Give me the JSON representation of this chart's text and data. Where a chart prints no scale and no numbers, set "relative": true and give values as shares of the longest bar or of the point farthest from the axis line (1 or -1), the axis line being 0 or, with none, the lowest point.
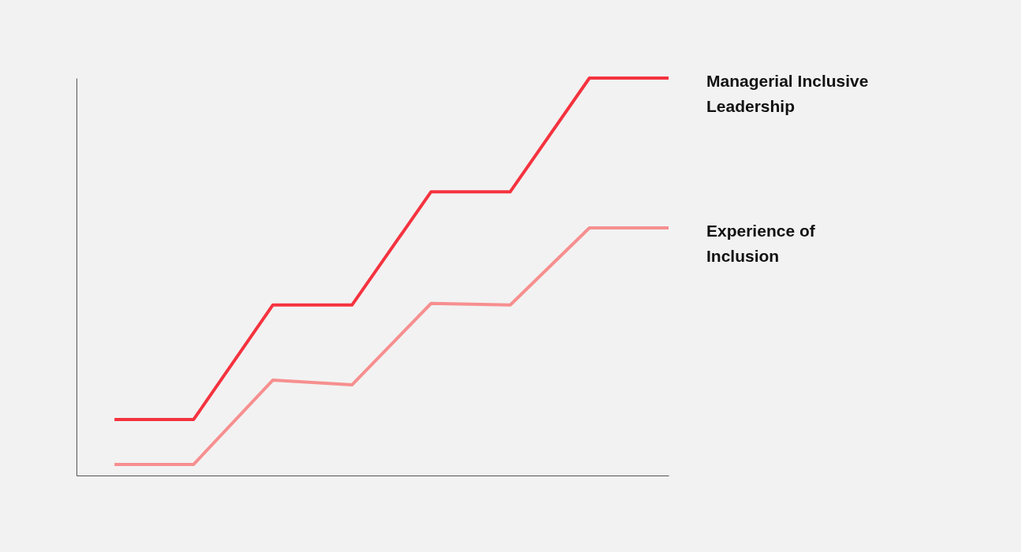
{
  "chart_data": {
    "type": "line",
    "relative": true,
    "grid": false,
    "legend": false,
    "marker": "none",
    "line_style": "solid",
    "categories": [
      null,
      null,
      null,
      null,
      null,
      null,
      null,
      null
    ],
    "series": [
      {
        "name": "Managerial Inclusive Leadership",
        "color": "#f5333f",
        "values": [
          0.141,
          0.141,
          0.429,
          0.429,
          0.714,
          0.714,
          1,
          1
        ]
      },
      {
        "name": "Experience of Inclusion",
        "color": "#f78f8f",
        "values": [
          0.028,
          0.028,
          0.24,
          0.228,
          0.433,
          0.429,
          0.623,
          0.623
        ]
      }
    ]
  }
}
